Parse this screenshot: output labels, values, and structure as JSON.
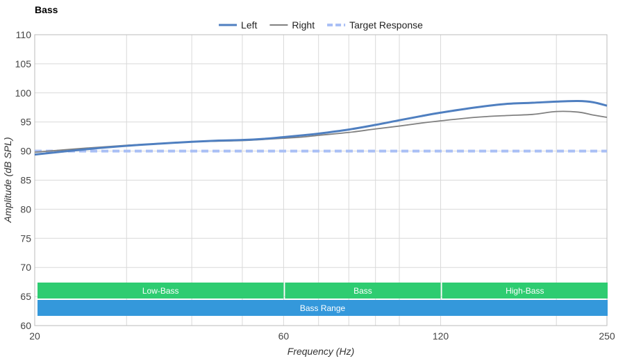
{
  "chart_data": {
    "type": "line",
    "title": "Bass",
    "xlabel": "Frequency (Hz)",
    "ylabel": "Amplitude (dB SPL)",
    "x_scale": "log",
    "xlim": [
      20,
      250
    ],
    "ylim": [
      60,
      110
    ],
    "x_ticks": [
      20,
      60,
      120,
      250
    ],
    "y_ticks": [
      60,
      65,
      70,
      75,
      80,
      85,
      90,
      95,
      100,
      105,
      110
    ],
    "x_minor_gridlines": [
      30,
      40,
      50,
      70,
      80,
      90,
      100,
      200
    ],
    "grid": true,
    "legend_position": "top",
    "series": [
      {
        "name": "Left",
        "color": "#4f7fc0",
        "style": "solid",
        "x": [
          20,
          25,
          30,
          35,
          40,
          45,
          50,
          55,
          60,
          65,
          70,
          80,
          90,
          100,
          110,
          120,
          140,
          160,
          180,
          200,
          220,
          235,
          250
        ],
        "y": [
          89.4,
          90.3,
          90.9,
          91.3,
          91.6,
          91.8,
          91.9,
          92.1,
          92.4,
          92.7,
          93.0,
          93.7,
          94.5,
          95.3,
          96.0,
          96.6,
          97.5,
          98.1,
          98.3,
          98.5,
          98.6,
          98.4,
          97.8
        ]
      },
      {
        "name": "Right",
        "color": "#808080",
        "style": "solid",
        "x": [
          20,
          25,
          30,
          35,
          40,
          45,
          50,
          55,
          60,
          65,
          70,
          80,
          90,
          100,
          110,
          120,
          140,
          160,
          180,
          200,
          220,
          235,
          250
        ],
        "y": [
          89.8,
          90.5,
          91.0,
          91.3,
          91.6,
          91.7,
          91.8,
          92.0,
          92.2,
          92.4,
          92.7,
          93.2,
          93.8,
          94.3,
          94.8,
          95.2,
          95.8,
          96.1,
          96.3,
          96.8,
          96.7,
          96.2,
          95.8
        ]
      },
      {
        "name": "Target Response",
        "color": "#a9bff5",
        "style": "dashed",
        "x": [
          20,
          250
        ],
        "y": [
          90,
          90
        ]
      }
    ],
    "bands": [
      {
        "label": "Low-Bass",
        "from": 20,
        "to": 60,
        "row": 1,
        "color": "#2ecc71"
      },
      {
        "label": "Bass",
        "from": 60,
        "to": 120,
        "row": 1,
        "color": "#2ecc71"
      },
      {
        "label": "High-Bass",
        "from": 120,
        "to": 250,
        "row": 1,
        "color": "#2ecc71"
      },
      {
        "label": "Bass Range",
        "from": 20,
        "to": 250,
        "row": 2,
        "color": "#3498db"
      }
    ]
  }
}
